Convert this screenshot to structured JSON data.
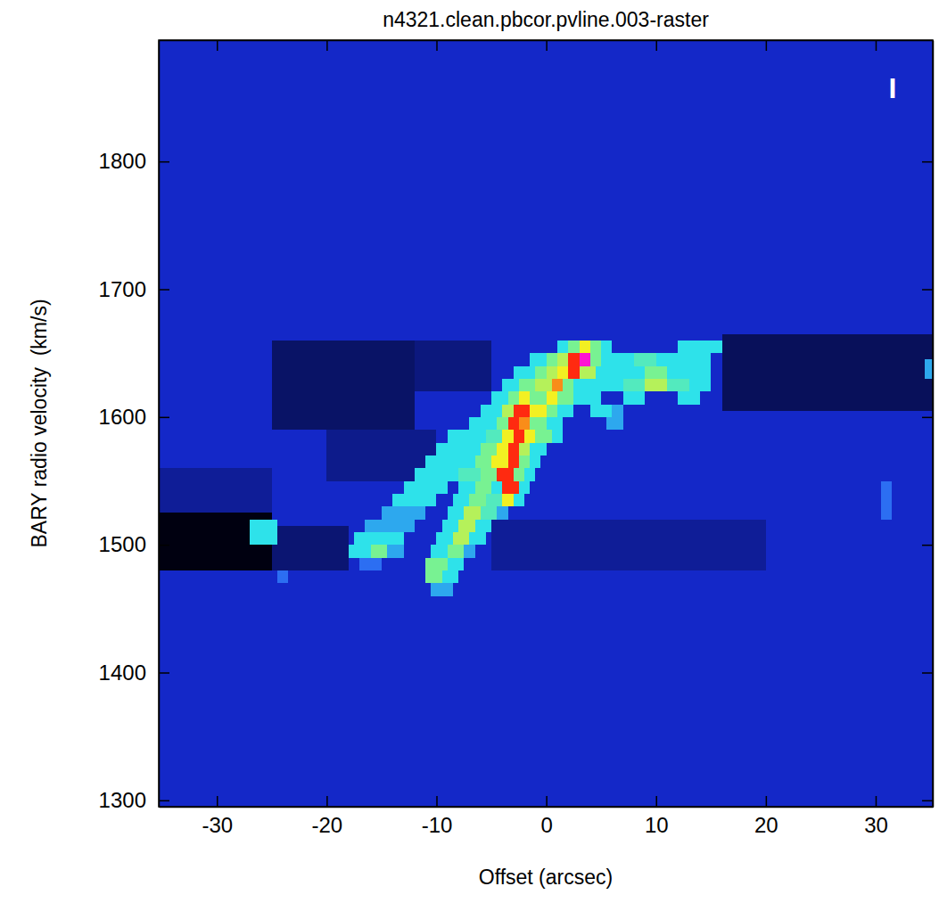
{
  "chart_data": {
    "type": "heatmap",
    "title": "n4321.clean.pbcor.pvline.003-raster",
    "x_label": "Offset (arcsec)",
    "y_label": "BARY radio velocity  (km/s)",
    "annotation": "I",
    "xlim": [
      -35.3,
      35.2
    ],
    "ylim": [
      1295,
      1895
    ],
    "xticks": [
      -30,
      -20,
      -10,
      0,
      10,
      20,
      30
    ],
    "yticks": [
      1300,
      1400,
      1500,
      1600,
      1700,
      1800
    ],
    "zlim": [
      -1.5,
      6
    ],
    "background": 0,
    "cells": [
      [
        -35.3,
        -25,
        1480,
        1525,
        -1.5
      ],
      [
        -25,
        -18,
        1480,
        1515,
        -0.7
      ],
      [
        -5,
        20,
        1480,
        1520,
        -0.4
      ],
      [
        -25,
        -12,
        1590,
        1660,
        -0.8
      ],
      [
        -20,
        -10,
        1550,
        1590,
        -0.5
      ],
      [
        -12,
        -5,
        1620,
        1660,
        -0.6
      ],
      [
        16,
        35.2,
        1605,
        1665,
        -0.9
      ],
      [
        -35.3,
        -25,
        1525,
        1560,
        -0.4
      ],
      [
        30.5,
        31.5,
        1520,
        1550,
        1
      ],
      [
        34.5,
        35.2,
        1630,
        1645,
        1.5
      ],
      [
        -10.5,
        -8.5,
        1460,
        1470,
        1.5
      ],
      [
        -11,
        -9.5,
        1470,
        1480,
        3
      ],
      [
        -9.5,
        -8,
        1470,
        1480,
        2
      ],
      [
        -24.5,
        -23.5,
        1470,
        1480,
        1
      ],
      [
        -17,
        -15,
        1480,
        1490,
        1
      ],
      [
        -11,
        -9,
        1480,
        1490,
        3
      ],
      [
        -9,
        -7.5,
        1480,
        1490,
        2
      ],
      [
        -18,
        -16,
        1490,
        1500,
        2
      ],
      [
        -16,
        -14.5,
        1490,
        1500,
        3
      ],
      [
        -14.5,
        -13,
        1490,
        1500,
        1.5
      ],
      [
        -10.5,
        -9,
        1490,
        1500,
        2
      ],
      [
        -9,
        -7.5,
        1490,
        1500,
        3
      ],
      [
        -7.5,
        -6.5,
        1490,
        1500,
        1.5
      ],
      [
        -27,
        -24.5,
        1500,
        1510,
        2
      ],
      [
        -17.5,
        -13,
        1500,
        1510,
        2
      ],
      [
        -10,
        -8.5,
        1500,
        1510,
        2
      ],
      [
        -8.5,
        -7,
        1500,
        1510,
        3.5
      ],
      [
        -7,
        -5.5,
        1500,
        1510,
        2
      ],
      [
        -27,
        -24.5,
        1510,
        1520,
        2
      ],
      [
        -16.5,
        -12,
        1510,
        1520,
        1.5
      ],
      [
        -9.5,
        -8,
        1510,
        1520,
        2
      ],
      [
        -8,
        -6.5,
        1510,
        1520,
        3.5
      ],
      [
        -6.5,
        -5,
        1510,
        1520,
        2
      ],
      [
        -15,
        -11,
        1520,
        1530,
        1.5
      ],
      [
        -9,
        -7.5,
        1520,
        1530,
        2
      ],
      [
        -7.5,
        -6,
        1520,
        1530,
        3.5
      ],
      [
        -6,
        -4.5,
        1520,
        1530,
        2.5
      ],
      [
        -4.5,
        -3.5,
        1520,
        1530,
        1.5
      ],
      [
        -14,
        -10,
        1530,
        1540,
        2
      ],
      [
        -8.5,
        -7,
        1530,
        1540,
        2
      ],
      [
        -7,
        -5.5,
        1530,
        1540,
        3
      ],
      [
        -5.5,
        -4,
        1530,
        1540,
        2.5
      ],
      [
        -4,
        -3,
        1530,
        1540,
        4
      ],
      [
        -3,
        -2,
        1530,
        1540,
        2
      ],
      [
        -13,
        -9,
        1540,
        1550,
        2
      ],
      [
        -8,
        -6.5,
        1540,
        1550,
        2
      ],
      [
        -6.5,
        -5,
        1540,
        1550,
        3
      ],
      [
        -5,
        -4,
        1540,
        1550,
        2
      ],
      [
        -4,
        -2.5,
        1540,
        1550,
        5
      ],
      [
        -2.5,
        -1.5,
        1540,
        1550,
        2
      ],
      [
        -12,
        -8,
        1550,
        1560,
        2
      ],
      [
        -8,
        -6,
        1550,
        1560,
        2.5
      ],
      [
        -6,
        -4.5,
        1550,
        1560,
        3
      ],
      [
        -4.5,
        -3,
        1550,
        1560,
        5
      ],
      [
        -3,
        -2,
        1550,
        1560,
        3
      ],
      [
        -2,
        -1,
        1550,
        1560,
        2
      ],
      [
        -11,
        -6.5,
        1560,
        1570,
        2
      ],
      [
        -6.5,
        -5,
        1560,
        1570,
        3
      ],
      [
        -5,
        -3.5,
        1560,
        1570,
        4
      ],
      [
        -3.5,
        -2.5,
        1560,
        1570,
        5
      ],
      [
        -2.5,
        -1.5,
        1560,
        1570,
        3
      ],
      [
        -1.5,
        -0.5,
        1560,
        1570,
        2
      ],
      [
        -10,
        -6,
        1570,
        1580,
        2
      ],
      [
        -6,
        -4.5,
        1570,
        1580,
        3
      ],
      [
        -4.5,
        -3.5,
        1570,
        1580,
        4
      ],
      [
        -3.5,
        -2.5,
        1570,
        1580,
        5
      ],
      [
        -2.5,
        -1.5,
        1570,
        1580,
        3.5
      ],
      [
        -1.5,
        0,
        1570,
        1580,
        2
      ],
      [
        -9,
        -5.5,
        1580,
        1590,
        2
      ],
      [
        -5.5,
        -4,
        1580,
        1590,
        2.5
      ],
      [
        -4,
        -3,
        1580,
        1590,
        4
      ],
      [
        -3,
        -2,
        1580,
        1590,
        5
      ],
      [
        -2,
        -1,
        1580,
        1590,
        4
      ],
      [
        -1,
        0.5,
        1580,
        1590,
        3
      ],
      [
        0.5,
        1.5,
        1580,
        1590,
        2
      ],
      [
        -7,
        -4.5,
        1590,
        1600,
        2
      ],
      [
        -4.5,
        -3.5,
        1590,
        1600,
        3
      ],
      [
        -3.5,
        -2.5,
        1590,
        1600,
        5
      ],
      [
        -2.5,
        -1.5,
        1590,
        1600,
        4.5
      ],
      [
        -1.5,
        0,
        1590,
        1600,
        3
      ],
      [
        0,
        1.5,
        1590,
        1600,
        2
      ],
      [
        5.5,
        7,
        1590,
        1600,
        1.5
      ],
      [
        -6,
        -4,
        1600,
        1610,
        2
      ],
      [
        -4,
        -3,
        1600,
        1610,
        3.5
      ],
      [
        -3,
        -1.5,
        1600,
        1610,
        5
      ],
      [
        -1.5,
        0,
        1600,
        1610,
        4
      ],
      [
        0,
        1,
        1600,
        1610,
        3
      ],
      [
        1,
        2.5,
        1600,
        1610,
        2
      ],
      [
        4,
        6,
        1600,
        1610,
        2
      ],
      [
        6,
        7,
        1600,
        1610,
        1.5
      ],
      [
        -5,
        -3.5,
        1610,
        1620,
        2
      ],
      [
        -3.5,
        -2.5,
        1610,
        1620,
        3
      ],
      [
        -2.5,
        -1.5,
        1610,
        1620,
        4
      ],
      [
        -1.5,
        0,
        1610,
        1620,
        3
      ],
      [
        0,
        1,
        1610,
        1620,
        4
      ],
      [
        1,
        2.5,
        1610,
        1620,
        3
      ],
      [
        2.5,
        5,
        1610,
        1620,
        2
      ],
      [
        7,
        9,
        1610,
        1620,
        2
      ],
      [
        12,
        14,
        1610,
        1620,
        2
      ],
      [
        -4,
        -2.5,
        1620,
        1630,
        2
      ],
      [
        -2.5,
        -1,
        1620,
        1630,
        3
      ],
      [
        -1,
        0.5,
        1620,
        1630,
        3.5
      ],
      [
        0.5,
        1.5,
        1620,
        1630,
        4.5
      ],
      [
        1.5,
        2.5,
        1620,
        1630,
        3
      ],
      [
        2.5,
        4.5,
        1620,
        1630,
        2
      ],
      [
        4.5,
        7,
        1620,
        1630,
        2
      ],
      [
        7,
        9,
        1620,
        1630,
        2.5
      ],
      [
        9,
        11,
        1620,
        1630,
        3.5
      ],
      [
        11,
        13,
        1620,
        1630,
        2.5
      ],
      [
        13,
        15,
        1620,
        1630,
        2
      ],
      [
        -3,
        -1,
        1630,
        1640,
        2
      ],
      [
        -1,
        0,
        1630,
        1640,
        3
      ],
      [
        0,
        1,
        1630,
        1640,
        3.5
      ],
      [
        1,
        2,
        1630,
        1640,
        4
      ],
      [
        2,
        3,
        1630,
        1640,
        5
      ],
      [
        3,
        4.5,
        1630,
        1640,
        3.5
      ],
      [
        4.5,
        7,
        1630,
        1640,
        2
      ],
      [
        7,
        9,
        1630,
        1640,
        2
      ],
      [
        9,
        11,
        1630,
        1640,
        3
      ],
      [
        11,
        13,
        1630,
        1640,
        2
      ],
      [
        13,
        15,
        1630,
        1640,
        2
      ],
      [
        -1.5,
        0,
        1640,
        1650,
        2
      ],
      [
        0,
        1,
        1640,
        1650,
        3
      ],
      [
        1,
        2,
        1640,
        1650,
        3.5
      ],
      [
        2,
        3,
        1640,
        1650,
        5
      ],
      [
        3,
        4,
        1640,
        1650,
        6
      ],
      [
        4,
        5,
        1640,
        1650,
        3
      ],
      [
        5,
        8,
        1640,
        1650,
        2
      ],
      [
        8,
        10,
        1640,
        1650,
        2.5
      ],
      [
        10,
        15,
        1640,
        1650,
        2
      ],
      [
        1,
        2,
        1650,
        1660,
        2
      ],
      [
        2,
        3,
        1650,
        1660,
        3
      ],
      [
        3,
        4,
        1650,
        1660,
        4
      ],
      [
        4,
        5,
        1650,
        1660,
        3
      ],
      [
        5,
        6,
        1650,
        1660,
        2
      ],
      [
        12,
        16,
        1650,
        1660,
        2
      ]
    ]
  }
}
